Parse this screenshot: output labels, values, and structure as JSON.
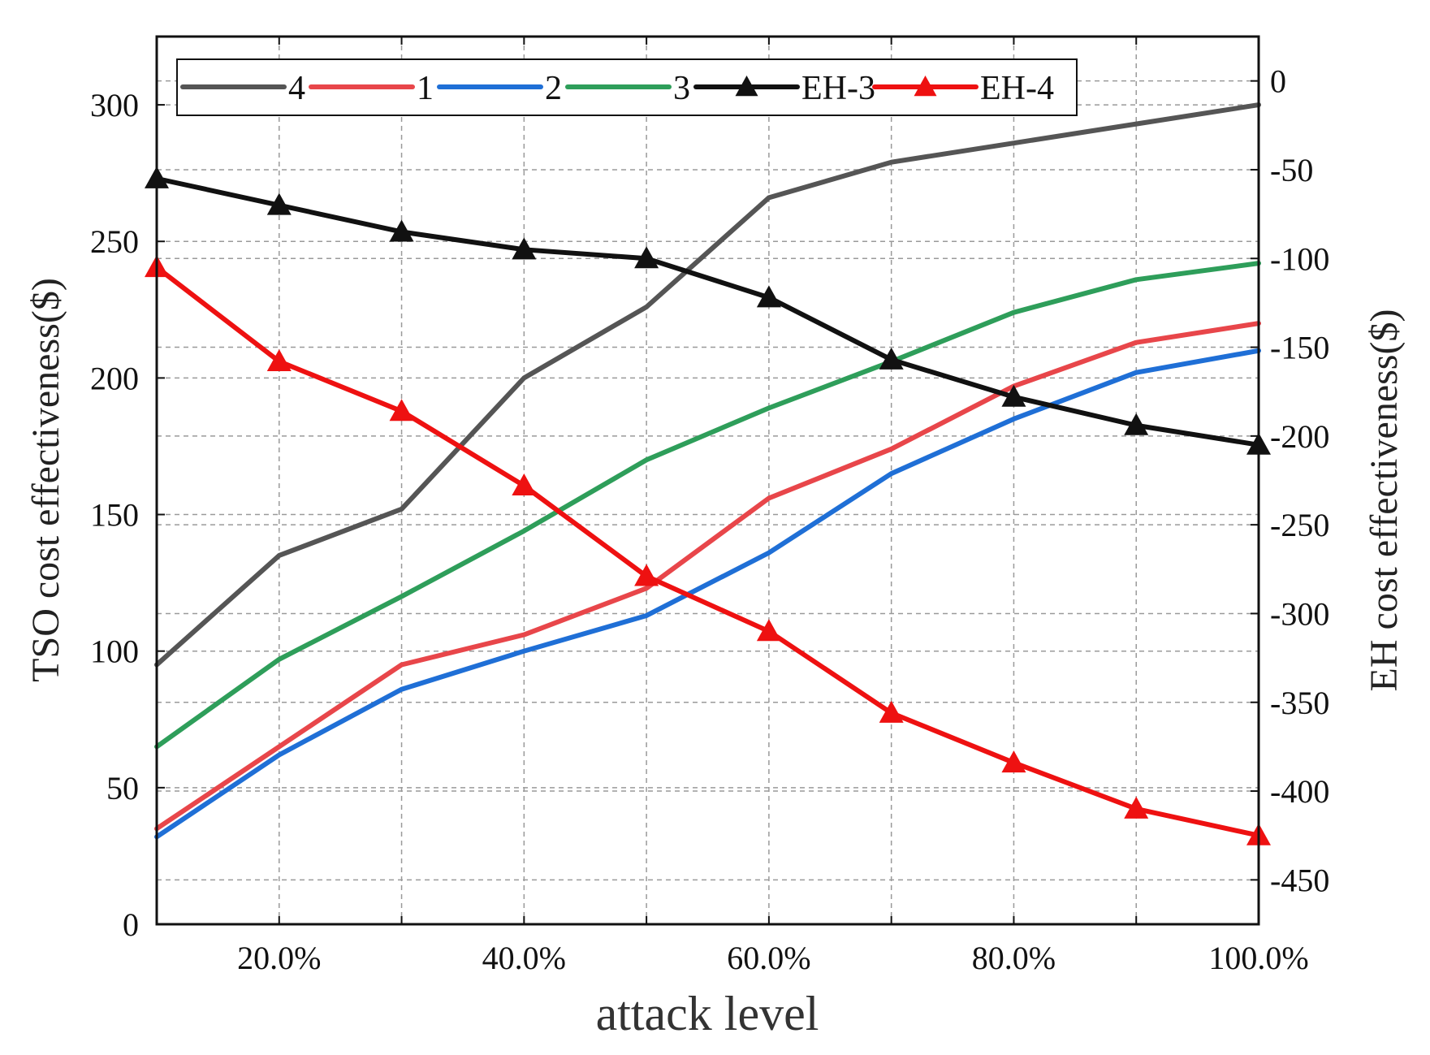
{
  "chart_data": {
    "type": "line",
    "xlabel": "attack level",
    "ylabel_left": "TSO cost effectiveness($)",
    "ylabel_right": "EH cost effectiveness($)",
    "x": [
      10,
      20,
      30,
      40,
      50,
      60,
      70,
      80,
      90,
      100
    ],
    "xlim": [
      10,
      100
    ],
    "x_ticks": [
      20,
      40,
      60,
      80,
      100
    ],
    "x_tick_labels": [
      "20.0%",
      "40.0%",
      "60.0%",
      "80.0%",
      "100.0%"
    ],
    "ylim_left": [
      0,
      325
    ],
    "y_ticks_left": [
      0,
      50,
      100,
      150,
      200,
      250,
      300
    ],
    "y_tick_labels_left": [
      "0",
      "50",
      "100",
      "150",
      "200",
      "250",
      "300"
    ],
    "ylim_right": [
      -475,
      25
    ],
    "y_ticks_right": [
      0,
      -50,
      -100,
      -150,
      -200,
      -250,
      -300,
      -350,
      -400,
      -450
    ],
    "y_tick_labels_right": [
      "0",
      "-50",
      "-100",
      "-150",
      "-200",
      "-250",
      "-300",
      "-350",
      "-400",
      "-450"
    ],
    "grid": true,
    "legend_position": "top",
    "series": [
      {
        "name": "4",
        "axis": "left",
        "color": "#555555",
        "marker": "none",
        "values": [
          95,
          135,
          152,
          200,
          226,
          266,
          279,
          286,
          293,
          300
        ]
      },
      {
        "name": "1",
        "axis": "left",
        "color": "#e8464a",
        "marker": "none",
        "values": [
          35,
          65,
          95,
          106,
          123,
          156,
          174,
          197,
          213,
          220
        ]
      },
      {
        "name": "2",
        "axis": "left",
        "color": "#1f6fd6",
        "marker": "none",
        "values": [
          32,
          62,
          86,
          100,
          113,
          136,
          165,
          185,
          202,
          210
        ]
      },
      {
        "name": "3",
        "axis": "left",
        "color": "#2e9e5a",
        "marker": "none",
        "values": [
          65,
          97,
          120,
          144,
          170,
          189,
          206,
          224,
          236,
          242
        ]
      },
      {
        "name": "EH-3",
        "axis": "right",
        "color": "#111111",
        "marker": "triangle",
        "values": [
          -55,
          -70,
          -85,
          -95,
          -100,
          -122,
          -157,
          -178,
          -194,
          -205
        ]
      },
      {
        "name": "EH-4",
        "axis": "right",
        "color": "#ee1111",
        "marker": "triangle",
        "values": [
          -105,
          -158,
          -186,
          -228,
          -279,
          -310,
          -356,
          -384,
          -410,
          -425
        ]
      }
    ]
  }
}
